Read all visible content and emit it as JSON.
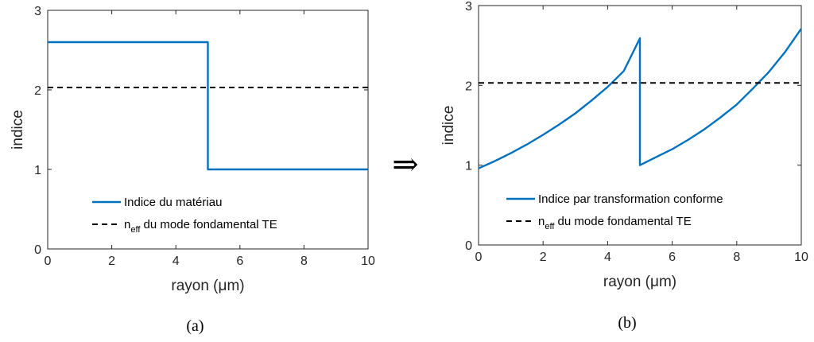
{
  "arrow_symbol": "⇒",
  "chart_data": [
    {
      "type": "line",
      "caption": "(a)",
      "xlabel": "rayon (μm)",
      "ylabel": "indice",
      "xlim": [
        0,
        10
      ],
      "ylim": [
        0,
        3
      ],
      "xticks": [
        0,
        2,
        4,
        6,
        8,
        10
      ],
      "yticks": [
        0,
        1,
        2,
        3
      ],
      "grid": false,
      "legend_position": "bottom-center",
      "series": [
        {
          "name": "Indice du matériau",
          "style": "solid",
          "color": "#0072BD",
          "x": [
            0,
            5,
            5,
            10
          ],
          "y": [
            2.6,
            2.6,
            1.0,
            1.0
          ]
        },
        {
          "name": "n",
          "name_subscript": "eff",
          "name_suffix": " du mode fondamental TE",
          "style": "dashed",
          "color": "#000000",
          "x": [
            0,
            10
          ],
          "y": [
            2.03,
            2.03
          ]
        }
      ]
    },
    {
      "type": "line",
      "caption": "(b)",
      "xlabel": "rayon (μm)",
      "ylabel": "indice",
      "xlim": [
        0,
        10
      ],
      "ylim": [
        0,
        3
      ],
      "xticks": [
        0,
        2,
        4,
        6,
        8,
        10
      ],
      "yticks": [
        0,
        1,
        2,
        3
      ],
      "grid": false,
      "legend_position": "bottom-center",
      "series": [
        {
          "name": "Indice par transformation conforme",
          "style": "solid",
          "color": "#0072BD",
          "x": [
            0,
            0.5,
            1,
            1.5,
            2,
            2.5,
            3,
            3.5,
            4,
            4.5,
            5,
            5,
            5.5,
            6,
            6.5,
            7,
            7.5,
            8,
            8.5,
            9,
            9.5,
            10
          ],
          "y": [
            0.96,
            1.05,
            1.15,
            1.26,
            1.38,
            1.51,
            1.65,
            1.81,
            1.98,
            2.18,
            2.59,
            1.0,
            1.1,
            1.2,
            1.32,
            1.45,
            1.6,
            1.76,
            1.96,
            2.17,
            2.42,
            2.71
          ]
        },
        {
          "name": "n",
          "name_subscript": "eff",
          "name_suffix": " du mode fondamental TE",
          "style": "dashed",
          "color": "#000000",
          "x": [
            0,
            10
          ],
          "y": [
            2.03,
            2.03
          ]
        }
      ]
    }
  ]
}
